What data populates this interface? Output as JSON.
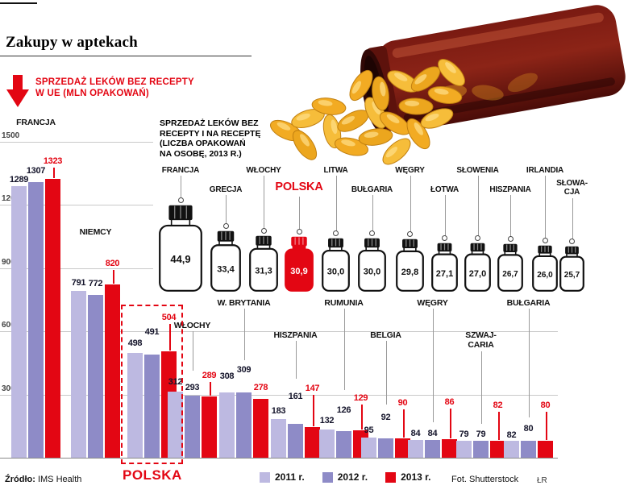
{
  "page": {
    "title": "Zakupy w aptekach",
    "source_label": "Źródło:",
    "source_value": "IMS Health",
    "photo_credit": "Fot. Shutterstock",
    "initials": "ŁR"
  },
  "colors": {
    "accent_red": "#e30613",
    "bar_2011": "#bdb9e1",
    "bar_2012": "#8e8bc7",
    "bar_2013": "#e30613"
  },
  "chart_data": [
    {
      "type": "bar",
      "title": "Sprzedaż leków bez recepty w UE (mln opakowań)",
      "title_lines": [
        "SPRZEDAŻ LEKÓW BEZ RECEPTY",
        "W UE (MLN OPAKOWAŃ)"
      ],
      "ylim": [
        0,
        1550
      ],
      "y_ticks": [
        300,
        600,
        900,
        1200,
        1500
      ],
      "grid": true,
      "legend_position": "bottom",
      "categories": [
        "FRANCJA",
        "NIEMCY",
        "POLSKA",
        "WŁOCHY",
        "W. BRYTANIA",
        "HISZPANIA",
        "RUMUNIA",
        "BELGIA",
        "WĘGRY",
        "SZWAJ-\nCARIA",
        "BUŁGARIA"
      ],
      "series": [
        {
          "name": "2011 r.",
          "values": [
            1289,
            791,
            498,
            312,
            308,
            183,
            132,
            95,
            84,
            79,
            82
          ]
        },
        {
          "name": "2012 r.",
          "values": [
            1307,
            772,
            491,
            293,
            309,
            161,
            126,
            92,
            84,
            79,
            80
          ]
        },
        {
          "name": "2013 r.",
          "values": [
            1323,
            820,
            504,
            289,
            278,
            147,
            129,
            90,
            86,
            82,
            80
          ]
        }
      ],
      "highlighted_category": "POLSKA"
    },
    {
      "type": "pictogram-bottles",
      "title": "Sprzedaż leków bez recepty i na receptę (liczba opakowań na osobę, 2013 r.)",
      "title_lines": [
        "SPRZEDAŻ LEKÓW BEZ",
        "RECEPTY I NA RECEPTĘ",
        "(LICZBA OPAKOWAŃ",
        "NA OSOBĘ, 2013 R.)"
      ],
      "categories": [
        "FRANCJA",
        "GRECJA",
        "WŁOCHY",
        "POLSKA",
        "LITWA",
        "BUŁGARIA",
        "WĘGRY",
        "ŁOTWA",
        "SŁOWENIA",
        "HISZPANIA",
        "IRLANDIA",
        "SŁOWA-\nCJA"
      ],
      "values": [
        "44,9",
        "33,4",
        "31,3",
        "30,9",
        "30,0",
        "30,0",
        "29,8",
        "27,1",
        "27,0",
        "26,7",
        "26,0",
        "25,7"
      ],
      "highlighted_category": "POLSKA"
    }
  ],
  "legend": [
    {
      "label": "2011 r.",
      "color": "#bdb9e1"
    },
    {
      "label": "2012 r.",
      "color": "#8e8bc7"
    },
    {
      "label": "2013 r.",
      "color": "#e30613"
    }
  ]
}
